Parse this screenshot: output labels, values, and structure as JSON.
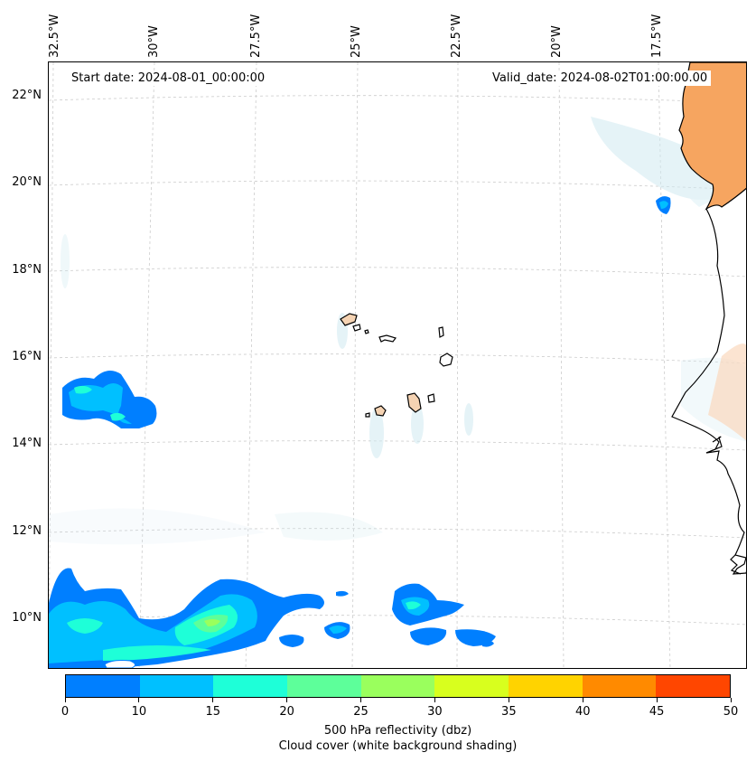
{
  "header": {
    "start_date": "Start date: 2024-08-01_00:00:00",
    "valid_date": "Valid_date: 2024-08-02T01:00:00.00"
  },
  "axes": {
    "lon_labels": [
      "32.5°W",
      "30°W",
      "27.5°W",
      "25°W",
      "22.5°W",
      "20°W",
      "17.5°W"
    ],
    "lat_labels": [
      "22°N",
      "20°N",
      "18°N",
      "16°N",
      "14°N",
      "12°N",
      "10°N"
    ],
    "lon_range": [
      -33.0,
      -15.5
    ],
    "lat_range": [
      8.8,
      22.8
    ],
    "gridlines": true
  },
  "colorbar": {
    "ticks": [
      "0",
      "10",
      "15",
      "20",
      "25",
      "30",
      "35",
      "40",
      "45",
      "50"
    ],
    "colors": [
      "#007fff",
      "#00c0ff",
      "#1effd8",
      "#5dff9a",
      "#9aff5d",
      "#d8ff1e",
      "#ffd300",
      "#ff8a00",
      "#ff4600"
    ],
    "label_line1": "500 hPa reflectivity (dbz)",
    "label_line2": "Cloud cover (white background shading)"
  },
  "colors": {
    "land_fill": "#f6a560",
    "island_fill": "#f5d3b3",
    "cloud_shading": "#cfe9f1",
    "coast_line": "#000000"
  }
}
